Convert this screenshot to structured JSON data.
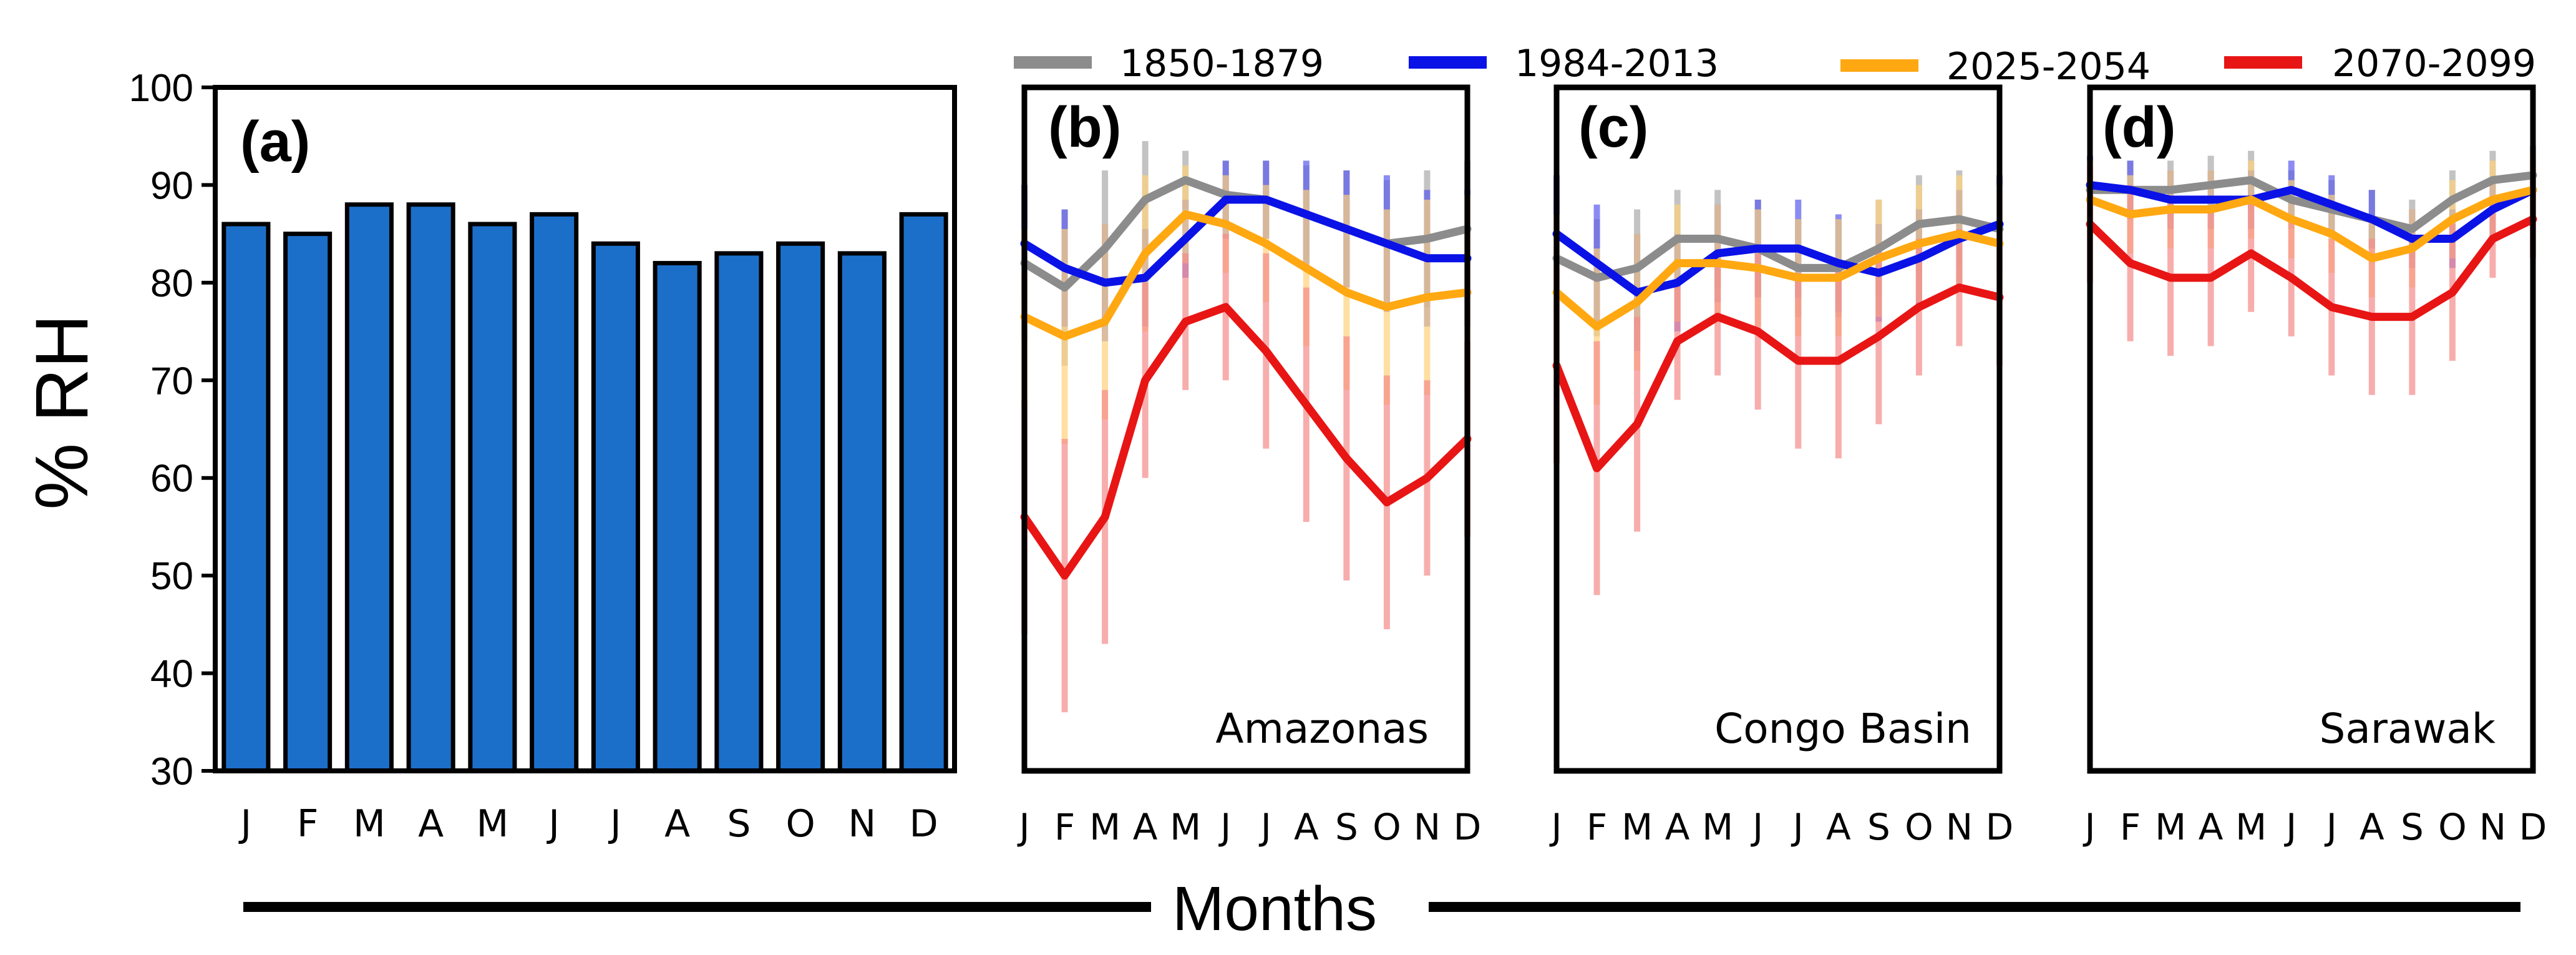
{
  "figure": {
    "ylabel": "% RH",
    "xlabel": "Months",
    "month_labels": [
      "J",
      "F",
      "M",
      "A",
      "M",
      "J",
      "J",
      "A",
      "S",
      "O",
      "N",
      "D"
    ]
  },
  "legend": [
    {
      "name": "1850-1879",
      "color": "#8c8c8c"
    },
    {
      "name": "1984-2013",
      "color": "#0a12e6"
    },
    {
      "name": "2025-2054",
      "color": "#ffa812"
    },
    {
      "name": "2070-2099",
      "color": "#e81515"
    }
  ],
  "colors": {
    "bar_fill": "#1c6fc9",
    "bar_stroke": "#000000"
  },
  "chart_data": [
    {
      "type": "bar",
      "panel_label": "(a)",
      "categories": [
        "J",
        "F",
        "M",
        "A",
        "M",
        "J",
        "J",
        "A",
        "S",
        "O",
        "N",
        "D"
      ],
      "values": [
        86,
        85,
        88,
        88,
        86,
        87,
        84,
        82,
        83,
        84,
        83,
        87
      ],
      "ylabel": "% RH",
      "ylim": [
        30,
        100
      ],
      "yticks": [
        30,
        40,
        50,
        60,
        70,
        80,
        90,
        100
      ]
    },
    {
      "type": "line",
      "panel_label": "(b)",
      "region": "Amazonas",
      "ylim": [
        30,
        100
      ],
      "categories": [
        "J",
        "F",
        "M",
        "A",
        "M",
        "J",
        "J",
        "A",
        "S",
        "O",
        "N",
        "D"
      ],
      "series": [
        {
          "name": "1850-1879",
          "values": [
            82,
            79.5,
            83.5,
            88.5,
            90.5,
            89,
            88.5,
            87,
            85.5,
            84,
            84.5,
            85.5
          ],
          "errors": [
            8,
            8,
            8,
            6,
            3,
            3.5,
            4,
            5,
            6,
            6.5,
            7,
            7
          ]
        },
        {
          "name": "1984-2013",
          "values": [
            84,
            81.5,
            80,
            80.5,
            84.5,
            88.5,
            88.5,
            87,
            85.5,
            84,
            82.5,
            82.5
          ],
          "errors": [
            6,
            6,
            6,
            5,
            4,
            4,
            4,
            5.5,
            6,
            7,
            7,
            7
          ]
        },
        {
          "name": "2025-2054",
          "values": [
            76.5,
            74.5,
            76,
            83,
            87,
            86,
            84,
            81.5,
            79,
            77.5,
            78.5,
            79
          ],
          "errors": [
            9,
            11,
            10,
            8,
            5,
            5,
            6,
            8,
            10,
            10,
            10,
            10
          ]
        },
        {
          "name": "2070-2099",
          "values": [
            56,
            50,
            56,
            70,
            76,
            77.5,
            73,
            67.5,
            62,
            57.5,
            60,
            64
          ],
          "errors": [
            12,
            14,
            13,
            10,
            7,
            7.5,
            10,
            12,
            12.5,
            13,
            10,
            10
          ]
        }
      ]
    },
    {
      "type": "line",
      "panel_label": "(c)",
      "region": "Congo Basin",
      "ylim": [
        30,
        100
      ],
      "categories": [
        "J",
        "F",
        "M",
        "A",
        "M",
        "J",
        "J",
        "A",
        "S",
        "O",
        "N",
        "D"
      ],
      "series": [
        {
          "name": "1850-1879",
          "values": [
            82.5,
            80.5,
            81.5,
            84.5,
            84.5,
            83.5,
            81.5,
            81.5,
            83.5,
            86,
            86.5,
            85.5
          ],
          "errors": [
            6,
            6,
            6,
            5,
            5,
            5,
            5,
            5,
            5,
            5,
            5,
            5
          ]
        },
        {
          "name": "1984-2013",
          "values": [
            85,
            82,
            79,
            80,
            83,
            83.5,
            83.5,
            82,
            81,
            82.5,
            84.5,
            86
          ],
          "errors": [
            6,
            6,
            6,
            5,
            5,
            5,
            5,
            5,
            5,
            5,
            5,
            5
          ]
        },
        {
          "name": "2025-2054",
          "values": [
            79,
            75.5,
            78,
            82,
            82,
            81.5,
            80.5,
            80.5,
            82.5,
            84,
            85,
            84
          ],
          "errors": [
            8,
            8,
            7,
            6,
            6,
            6,
            6,
            6,
            6,
            6,
            6,
            6
          ]
        },
        {
          "name": "2070-2099",
          "values": [
            71.5,
            61,
            65.5,
            74,
            76.5,
            75,
            72,
            72,
            74.5,
            77.5,
            79.5,
            78.5
          ],
          "errors": [
            10,
            13,
            11,
            6,
            6,
            8,
            9,
            10,
            9,
            7,
            6,
            7
          ]
        }
      ]
    },
    {
      "type": "line",
      "panel_label": "(d)",
      "region": "Sarawak",
      "ylim": [
        30,
        100
      ],
      "categories": [
        "J",
        "F",
        "M",
        "A",
        "M",
        "J",
        "J",
        "A",
        "S",
        "O",
        "N",
        "D"
      ],
      "series": [
        {
          "name": "1850-1879",
          "values": [
            89.5,
            89.5,
            89.5,
            90,
            90.5,
            88.5,
            87.5,
            86.5,
            85.5,
            88.5,
            90.5,
            91
          ],
          "errors": [
            3,
            3,
            3,
            3,
            3,
            3,
            3,
            3,
            3,
            3,
            3,
            3
          ]
        },
        {
          "name": "1984-2013",
          "values": [
            90,
            89.5,
            88.5,
            88.5,
            88.5,
            89.5,
            88,
            86.5,
            84.5,
            84.5,
            87.5,
            89.5
          ],
          "errors": [
            3,
            3,
            3,
            3,
            3,
            3,
            3,
            3,
            3,
            3,
            3,
            3
          ]
        },
        {
          "name": "2025-2054",
          "values": [
            88.5,
            87,
            87.5,
            87.5,
            88.5,
            86.5,
            85,
            82.5,
            83.5,
            86.5,
            88.5,
            89.5
          ],
          "errors": [
            4,
            4,
            4,
            4,
            4,
            4,
            4,
            4,
            4,
            4,
            4,
            4
          ]
        },
        {
          "name": "2070-2099",
          "values": [
            86,
            82,
            80.5,
            80.5,
            83,
            80.5,
            77.5,
            76.5,
            76.5,
            79,
            84.5,
            86.5
          ],
          "errors": [
            6,
            8,
            8,
            7,
            6,
            6,
            7,
            8,
            8,
            7,
            4,
            4
          ]
        }
      ]
    }
  ]
}
